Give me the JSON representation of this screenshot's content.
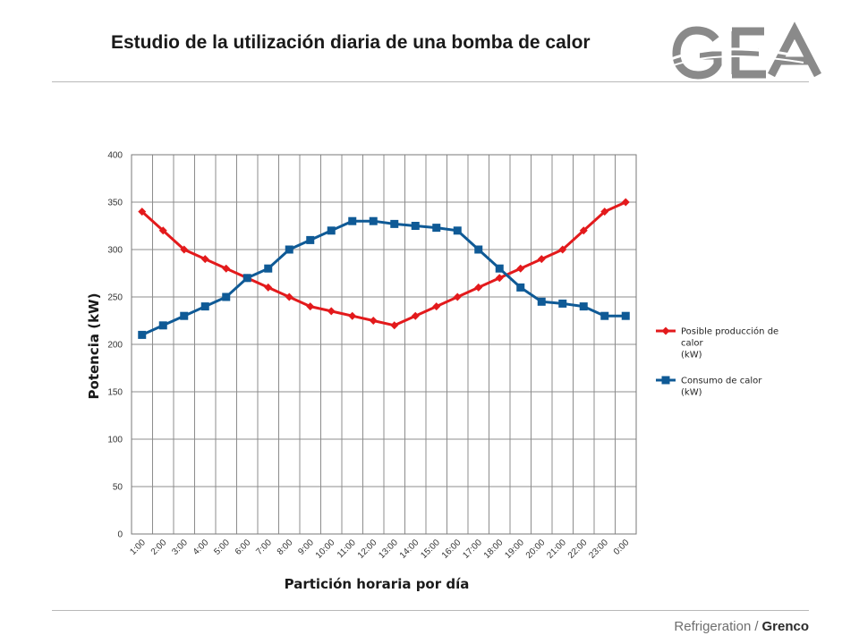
{
  "header": {
    "title": "Estudio de la utilización diaria de una bomba de calor",
    "logo_text": "GEA"
  },
  "footer": {
    "left": "Refrigeration",
    "separator": "/",
    "right": "Grenco"
  },
  "colors": {
    "series_production": "#e31a1c",
    "series_consumption": "#0f5a96",
    "grid": "#8c8c8c",
    "logo": "#8a8a8a"
  },
  "chart_data": {
    "type": "line",
    "xlabel": "Partición horaria por día",
    "ylabel": "Potencia (kW)",
    "ylim": [
      0,
      400
    ],
    "yticks": [
      0,
      50,
      100,
      150,
      200,
      250,
      300,
      350,
      400
    ],
    "grid": true,
    "legend_placement": "right",
    "categories": [
      "1:00",
      "2:00",
      "3:00",
      "4:00",
      "5:00",
      "6:00",
      "7:00",
      "8:00",
      "9:00",
      "10:00",
      "11:00",
      "12:00",
      "13:00",
      "14:00",
      "15:00",
      "16:00",
      "17:00",
      "18:00",
      "19:00",
      "20:00",
      "21:00",
      "22:00",
      "23:00",
      "0:00"
    ],
    "series": [
      {
        "name_lines": [
          "Posible producción de",
          "calor",
          "(kW)"
        ],
        "marker": "diamond",
        "values": [
          340,
          320,
          300,
          290,
          280,
          270,
          260,
          250,
          240,
          235,
          230,
          225,
          220,
          230,
          240,
          250,
          260,
          270,
          280,
          290,
          300,
          320,
          340,
          350
        ]
      },
      {
        "name_lines": [
          "Consumo de calor",
          "(kW)"
        ],
        "marker": "square",
        "values": [
          210,
          220,
          230,
          240,
          250,
          270,
          280,
          300,
          310,
          320,
          330,
          330,
          327,
          325,
          323,
          320,
          300,
          280,
          260,
          245,
          243,
          240,
          230,
          230
        ]
      }
    ]
  }
}
